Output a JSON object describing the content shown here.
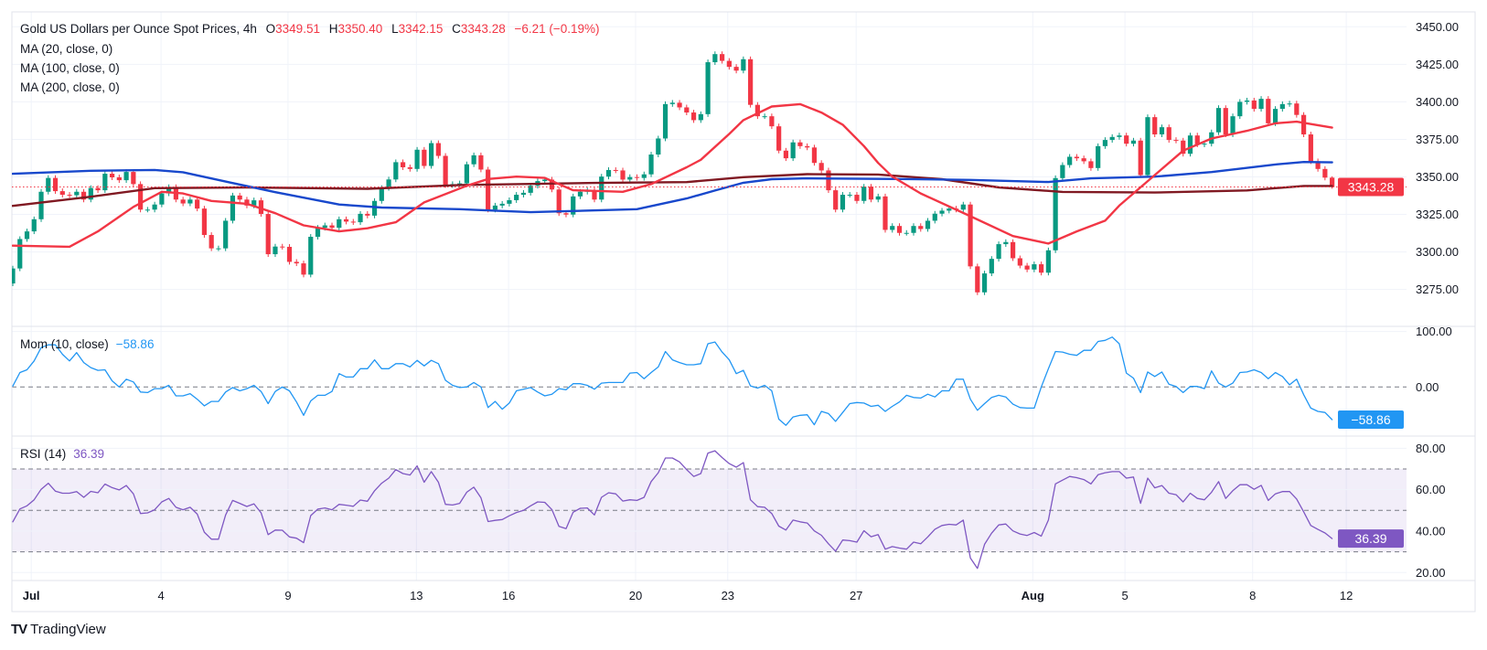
{
  "header": {
    "symbol": "Gold US Dollars per Ounce Spot Prices, 4h",
    "o_label": "O",
    "o": "3349.51",
    "h_label": "H",
    "h": "3350.40",
    "l_label": "L",
    "l": "3342.15",
    "c_label": "C",
    "c": "3343.28",
    "change": "−6.21 (−0.19%)"
  },
  "indicators": {
    "ma20": "MA (20, close, 0)",
    "ma100": "MA (100, close, 0)",
    "ma200": "MA (200, close, 0)",
    "mom_label": "Mom (10, close)",
    "mom_value": "−58.86",
    "rsi_label": "RSI (14)",
    "rsi_value": "36.39"
  },
  "brand": "TradingView",
  "colors": {
    "up": "#089981",
    "down": "#f23645",
    "ma20": "#f23645",
    "ma100": "#1848cc",
    "ma200": "#801922",
    "momentum": "#2196f3",
    "rsi": "#7e57c2",
    "grid": "#f0f3fa",
    "border": "#e0e3eb"
  },
  "chart_data": {
    "type": "candlestick",
    "title": "Gold US Dollars per Ounce Spot Prices, 4h",
    "price_ticks": [
      "3450.00",
      "3425.00",
      "3400.00",
      "3375.00",
      "3350.00",
      "3325.00",
      "3300.00",
      "3275.00"
    ],
    "last_price": "3343.28",
    "x_ticks": [
      {
        "label": "Jul",
        "bar": 2.6,
        "bold": true
      },
      {
        "label": "4",
        "bar": 20.9
      },
      {
        "label": "9",
        "bar": 38.8
      },
      {
        "label": "13",
        "bar": 56.9
      },
      {
        "label": "16",
        "bar": 69.9
      },
      {
        "label": "20",
        "bar": 87.8
      },
      {
        "label": "23",
        "bar": 100.8
      },
      {
        "label": "27",
        "bar": 118.9
      },
      {
        "label": "Aug",
        "bar": 143.8,
        "bold": true
      },
      {
        "label": "5",
        "bar": 156.8
      },
      {
        "label": "8",
        "bar": 174.8
      },
      {
        "label": "12",
        "bar": 188
      }
    ],
    "first_open": 3279,
    "last_candle": {
      "open": 3349.51,
      "high": 3350.4,
      "low": 3342.15,
      "close": 3343.28
    },
    "close": [
      3289,
      3308.6,
      3313.7,
      3321.8,
      3340.1,
      3349.3,
      3340.5,
      3338.1,
      3337.8,
      3340.1,
      3334.9,
      3342.6,
      3341.1,
      3352.1,
      3349.7,
      3347.8,
      3353.3,
      3345.2,
      3328.2,
      3328.2,
      3331.6,
      3339,
      3343.2,
      3334.9,
      3332.3,
      3334.9,
      3328.9,
      3311.3,
      3302.4,
      3302.4,
      3320.8,
      3337.6,
      3334.9,
      3330.9,
      3334.4,
      3325.3,
      3298.5,
      3303.6,
      3303.4,
      3293.4,
      3292.4,
      3284.9,
      3310.1,
      3316.1,
      3317.7,
      3316.1,
      3321.8,
      3320.2,
      3319.8,
      3325.4,
      3324.2,
      3334,
      3342.6,
      3348.3,
      3359.8,
      3356.4,
      3355.3,
      3368.1,
      3357.3,
      3372.5,
      3364,
      3344.5,
      3345.2,
      3345.7,
      3358.4,
      3364.4,
      3354.9,
      3328.2,
      3330.9,
      3332.1,
      3334.5,
      3338.1,
      3339.4,
      3344.1,
      3347.2,
      3348.2,
      3341.6,
      3325.8,
      3324.9,
      3337,
      3340.1,
      3341.1,
      3334.9,
      3350.2,
      3354.6,
      3354.3,
      3348.2,
      3349.9,
      3349.3,
      3351.7,
      3364.9,
      3375.6,
      3398.5,
      3399.4,
      3396.3,
      3392.9,
      3387.8,
      3391.8,
      3426.4,
      3431.8,
      3427.3,
      3423.3,
      3420.8,
      3428.4,
      3398,
      3390.4,
      3390.4,
      3383.7,
      3367.5,
      3362.4,
      3373,
      3370.5,
      3369.6,
      3359.3,
      3354.3,
      3341.1,
      3328.2,
      3338.1,
      3338.1,
      3334,
      3343.5,
      3334.9,
      3337,
      3314.7,
      3317.3,
      3312.7,
      3312.7,
      3317.3,
      3315.3,
      3320.8,
      3325.5,
      3327.5,
      3328.9,
      3328.2,
      3331.6,
      3290.4,
      3273.1,
      3285.7,
      3295.4,
      3305.2,
      3306.6,
      3295.8,
      3290.9,
      3288.3,
      3291.8,
      3286.2,
      3301.1,
      3349.2,
      3357.9,
      3363.4,
      3362.4,
      3360.4,
      3355.9,
      3370.5,
      3374.6,
      3376.6,
      3377.6,
      3372.1,
      3374.2,
      3351.2,
      3389.8,
      3378.3,
      3383.1,
      3374.6,
      3374.2,
      3365.4,
      3377.6,
      3371.6,
      3372.1,
      3379.7,
      3395.9,
      3378.3,
      3390.4,
      3400,
      3400.9,
      3395.3,
      3402,
      3385.7,
      3395.3,
      3398.5,
      3398.9,
      3391.3,
      3378.3,
      3360.4,
      3355.3,
      3349.51,
      3343.28
    ],
    "ma20": [
      [
        0,
        3304.2
      ],
      [
        8,
        3303.5
      ],
      [
        12,
        3313.7
      ],
      [
        17,
        3330
      ],
      [
        21,
        3340.1
      ],
      [
        24,
        3339
      ],
      [
        28,
        3334
      ],
      [
        33,
        3332.1
      ],
      [
        37,
        3325.8
      ],
      [
        41,
        3317.7
      ],
      [
        46,
        3313.7
      ],
      [
        50,
        3315.8
      ],
      [
        54,
        3319.8
      ],
      [
        58,
        3333
      ],
      [
        64,
        3344.1
      ],
      [
        67,
        3348.6
      ],
      [
        71,
        3350.2
      ],
      [
        75,
        3349.3
      ],
      [
        79,
        3341.1
      ],
      [
        86,
        3340.1
      ],
      [
        90,
        3345.2
      ],
      [
        95,
        3356.4
      ],
      [
        97,
        3361.4
      ],
      [
        101,
        3378.6
      ],
      [
        103,
        3387.8
      ],
      [
        107,
        3396.9
      ],
      [
        111,
        3398.5
      ],
      [
        114,
        3392.9
      ],
      [
        117,
        3384.8
      ],
      [
        120,
        3370.5
      ],
      [
        122,
        3359.3
      ],
      [
        124,
        3350.2
      ],
      [
        128,
        3339
      ],
      [
        135,
        3323.8
      ],
      [
        141,
        3310.6
      ],
      [
        146,
        3305.6
      ],
      [
        150,
        3313.7
      ],
      [
        154,
        3320.8
      ],
      [
        156,
        3330.9
      ],
      [
        161,
        3351.2
      ],
      [
        165,
        3367.5
      ],
      [
        169,
        3375.6
      ],
      [
        174,
        3380.7
      ],
      [
        178,
        3385.7
      ],
      [
        181,
        3386.8
      ],
      [
        186,
        3382.8
      ]
    ],
    "ma100": [
      [
        0,
        3352.1
      ],
      [
        11,
        3354.1
      ],
      [
        20,
        3354.6
      ],
      [
        24,
        3353.1
      ],
      [
        30,
        3346.9
      ],
      [
        37,
        3339.8
      ],
      [
        46,
        3331.6
      ],
      [
        52,
        3329.6
      ],
      [
        63,
        3328.5
      ],
      [
        73,
        3326.5
      ],
      [
        88,
        3328.5
      ],
      [
        95,
        3335.6
      ],
      [
        99,
        3340.9
      ],
      [
        103,
        3346.1
      ],
      [
        107,
        3348.5
      ],
      [
        112,
        3349
      ],
      [
        125,
        3348.6
      ],
      [
        135,
        3348
      ],
      [
        146,
        3346.6
      ],
      [
        152,
        3349
      ],
      [
        161,
        3350.2
      ],
      [
        169,
        3353.2
      ],
      [
        178,
        3358.3
      ],
      [
        182,
        3359.9
      ],
      [
        186,
        3359.7
      ]
    ],
    "ma200": [
      [
        0,
        3330.7
      ],
      [
        11,
        3336.8
      ],
      [
        20,
        3342.5
      ],
      [
        33,
        3343
      ],
      [
        50,
        3342.1
      ],
      [
        63,
        3344.6
      ],
      [
        82,
        3346
      ],
      [
        95,
        3346.5
      ],
      [
        103,
        3349.8
      ],
      [
        112,
        3351.8
      ],
      [
        122,
        3351.6
      ],
      [
        131,
        3348.5
      ],
      [
        139,
        3343
      ],
      [
        148,
        3340
      ],
      [
        161,
        3339.6
      ],
      [
        174,
        3341
      ],
      [
        182,
        3344
      ],
      [
        186,
        3344
      ]
    ],
    "momentum_ticks": [
      "100.00",
      "0.00"
    ],
    "momentum": [
      1.6,
      26,
      31,
      47,
      71,
      76,
      76,
      59,
      47,
      62,
      44,
      35,
      30,
      31,
      11,
      0,
      14,
      9,
      -9,
      -10,
      -3,
      -3,
      3,
      -16,
      -16,
      -12,
      -22,
      -34,
      -26,
      -26,
      -9,
      -1,
      -7,
      -3,
      3,
      -8,
      -30,
      -8,
      0,
      -7,
      -27,
      -51,
      -25,
      -15,
      -15,
      -8,
      24,
      18,
      18,
      33,
      33,
      49,
      33,
      33,
      42,
      42,
      36,
      48,
      38,
      48,
      42,
      12,
      3,
      -1,
      0,
      8,
      0,
      -37,
      -26,
      -40,
      -29,
      -7,
      -4,
      -1,
      -9,
      -16,
      -13,
      -3,
      -5,
      6,
      6,
      3,
      -4,
      7,
      8,
      8,
      8,
      25,
      26,
      15,
      26,
      36,
      64,
      49,
      44,
      40,
      40,
      42,
      78,
      81,
      63,
      49,
      24,
      30,
      2,
      -2,
      3,
      -7,
      -58,
      -69,
      -54,
      -51,
      -50,
      -68,
      -44,
      -48,
      -62,
      -46,
      -30,
      -28,
      -29,
      -35,
      -33,
      -44,
      -35,
      -27,
      -15,
      -19,
      -20,
      -13,
      -18,
      -7,
      -7,
      14,
      14,
      -22,
      -42,
      -30,
      -19,
      -15,
      -18,
      -31,
      -37,
      -38,
      -38,
      0,
      33,
      64,
      63,
      59,
      57,
      66,
      66,
      82,
      84,
      90,
      78,
      25,
      16,
      -10,
      27,
      19,
      27,
      5,
      1,
      -10,
      1,
      1,
      -3,
      29,
      7,
      0,
      7,
      26,
      27,
      31,
      26,
      15,
      26,
      19,
      4,
      14,
      -14,
      -38,
      -44,
      -46,
      -58.86
    ],
    "rsi_ticks": [
      "80.00",
      "60.00",
      "40.00",
      "20.00"
    ],
    "rsi_bands": [
      30,
      50,
      70
    ],
    "rsi": [
      44.5,
      50.7,
      52.2,
      55.1,
      60.2,
      63.1,
      59.3,
      58.3,
      58.3,
      59.1,
      56.3,
      59.2,
      58.5,
      62.7,
      61,
      59.9,
      62,
      58,
      48.5,
      48.8,
      50.3,
      54.1,
      55.8,
      51.5,
      50.3,
      51.5,
      48.2,
      39.5,
      36.1,
      36.1,
      47.8,
      54.8,
      53.4,
      51.9,
      53.2,
      48.8,
      38.3,
      40.5,
      40.4,
      37.2,
      36.6,
      34.4,
      47.5,
      50.6,
      51.2,
      50.3,
      52.9,
      52.5,
      52,
      55,
      54.4,
      59.5,
      63.1,
      65.6,
      69.7,
      67.8,
      67.1,
      71.5,
      63.6,
      68.7,
      63.6,
      52.9,
      52.6,
      53.4,
      58.8,
      61.2,
      56.1,
      44.6,
      45.2,
      45.6,
      47.4,
      49,
      50,
      52.2,
      54.1,
      53.9,
      50.4,
      42.3,
      41.2,
      49.1,
      51,
      51.2,
      47.8,
      56.3,
      58.5,
      58,
      54.5,
      55.1,
      54.8,
      56.3,
      63.9,
      68.2,
      75.3,
      75.3,
      73.4,
      69.7,
      66.4,
      67.8,
      77.7,
      78.8,
      75.5,
      72.6,
      70.9,
      73.1,
      55.1,
      51.8,
      51.5,
      48.5,
      42.4,
      40.5,
      45.3,
      44.5,
      43.9,
      40.1,
      38,
      33.9,
      30.3,
      35.7,
      35.4,
      34.7,
      40.2,
      37.3,
      38.3,
      31.3,
      32.5,
      31.8,
      31.3,
      34.7,
      33.9,
      37.2,
      40.9,
      42.7,
      43.3,
      43,
      45.3,
      27,
      22,
      33.6,
      39,
      43,
      43.4,
      40.1,
      38.6,
      37.9,
      39.3,
      37.6,
      45.3,
      62.8,
      64.6,
      66.4,
      65.8,
      64.9,
      62.8,
      67.2,
      68.2,
      68.7,
      68.7,
      65.6,
      66.1,
      53.4,
      65.6,
      60.9,
      62,
      58.3,
      57.6,
      54.1,
      58.3,
      55.8,
      55.1,
      58.8,
      63.9,
      55.8,
      59.5,
      62.4,
      62.4,
      60.2,
      62.1,
      54.8,
      58,
      59.1,
      59.1,
      55.5,
      49.3,
      42.7,
      40.8,
      39.1,
      36.39
    ]
  }
}
